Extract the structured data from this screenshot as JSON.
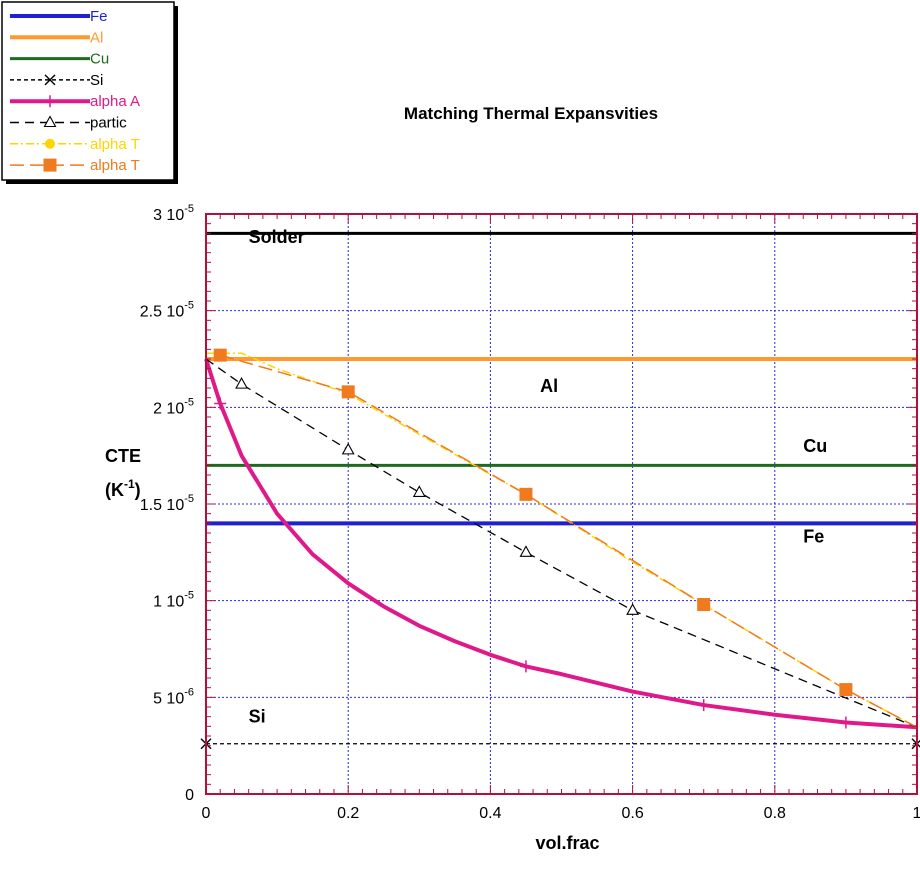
{
  "chart_data": {
    "type": "line",
    "title": "Matching Thermal Expansvities",
    "xlabel": "vol.frac",
    "ylabel_line1": "CTE",
    "ylabel_line2_base": "(K",
    "ylabel_line2_sup": "-1",
    "ylabel_line2_end": ")",
    "xlim": [
      0,
      1
    ],
    "ylim": [
      0,
      3e-05
    ],
    "x_ticks": [
      0,
      0.2,
      0.4,
      0.6,
      0.8,
      1
    ],
    "x_tick_labels": [
      "0",
      "0.2",
      "0.4",
      "0.6",
      "0.8",
      "1"
    ],
    "y_ticks": [
      0,
      5e-06,
      1e-05,
      1.5e-05,
      2e-05,
      2.5e-05,
      3e-05
    ],
    "y_tick_labels": [
      {
        "base": "0",
        "exp": ""
      },
      {
        "base": "5 10",
        "exp": "-6"
      },
      {
        "base": "1 10",
        "exp": "-5"
      },
      {
        "base": "1.5 10",
        "exp": "-5"
      },
      {
        "base": "2 10",
        "exp": "-5"
      },
      {
        "base": "2.5 10",
        "exp": "-5"
      },
      {
        "base": "3 10",
        "exp": "-5"
      }
    ],
    "grid": true,
    "legend_position": "top-left",
    "annotations": [
      {
        "text": "Solder",
        "x": 0.06,
        "y": 2.85e-05
      },
      {
        "text": "Al",
        "x": 0.47,
        "y": 2.08e-05
      },
      {
        "text": "Cu",
        "x": 0.84,
        "y": 1.77e-05
      },
      {
        "text": "Fe",
        "x": 0.84,
        "y": 1.3e-05
      },
      {
        "text": "Si",
        "x": 0.06,
        "y": 3.7e-06
      }
    ],
    "series": [
      {
        "name": "Fe",
        "color": "#1f1fd6",
        "style": "solid-thick",
        "marker": "none",
        "x": [
          0,
          1
        ],
        "y": [
          1.4e-05,
          1.4e-05
        ]
      },
      {
        "name": "Al",
        "color": "#ff9a2e",
        "style": "solid-thick",
        "marker": "none",
        "x": [
          0,
          1
        ],
        "y": [
          2.25e-05,
          2.25e-05
        ]
      },
      {
        "name": "Cu",
        "color": "#1e6b1e",
        "style": "solid-medium",
        "marker": "none",
        "x": [
          0,
          1
        ],
        "y": [
          1.7e-05,
          1.7e-05
        ]
      },
      {
        "name": "Si",
        "color": "#000000",
        "style": "dotted",
        "marker": "x",
        "x": [
          0,
          1
        ],
        "y": [
          2.6e-06,
          2.6e-06
        ],
        "marker_x": [
          0,
          1
        ]
      },
      {
        "name": "alpha A",
        "color": "#e0198a",
        "style": "solid-thick",
        "marker": "plus",
        "x": [
          0,
          0.02,
          0.05,
          0.1,
          0.15,
          0.2,
          0.25,
          0.3,
          0.35,
          0.4,
          0.45,
          0.5,
          0.6,
          0.7,
          0.8,
          0.9,
          1.0
        ],
        "y": [
          2.25e-05,
          2.02e-05,
          1.75e-05,
          1.45e-05,
          1.24e-05,
          1.09e-05,
          9.7e-06,
          8.7e-06,
          7.9e-06,
          7.2e-06,
          6.6e-06,
          6.2e-06,
          5.3e-06,
          4.6e-06,
          4.1e-06,
          3.7e-06,
          3.45e-06
        ],
        "marker_x": [
          0.02,
          0.45,
          0.7,
          0.9
        ]
      },
      {
        "name": "partic",
        "color": "#000000",
        "style": "dashed",
        "marker": "triangle",
        "x": [
          0,
          0.05,
          0.2,
          0.3,
          0.45,
          0.6,
          1.0
        ],
        "y": [
          2.25e-05,
          2.12e-05,
          1.78e-05,
          1.56e-05,
          1.25e-05,
          9.5e-06,
          3.45e-06
        ],
        "marker_x": [
          0.05,
          0.2,
          0.3,
          0.45,
          0.6
        ]
      },
      {
        "name": "alpha  T",
        "color": "#ffd500",
        "style": "dashdot",
        "marker": "none",
        "x": [
          0,
          0.05,
          0.1,
          0.2,
          0.3,
          0.45,
          0.6,
          0.7,
          0.9,
          1.0
        ],
        "y": [
          2.28e-05,
          2.28e-05,
          2.2e-05,
          2.07e-05,
          1.86e-05,
          1.55e-05,
          1.2e-05,
          9.8e-06,
          5.4e-06,
          3.45e-06
        ]
      },
      {
        "name": "alpha T",
        "color": "#f07a1e",
        "style": "dash-long",
        "marker": "square",
        "x": [
          0.02,
          0.2,
          0.45,
          0.7,
          0.9,
          1.0
        ],
        "y": [
          2.27e-05,
          2.08e-05,
          1.55e-05,
          9.8e-06,
          5.4e-06,
          3.45e-06
        ],
        "marker_x": [
          0.02,
          0.2,
          0.45,
          0.7,
          0.9
        ]
      },
      {
        "name": "Solder",
        "legend": false,
        "color": "#000000",
        "style": "solid-medium",
        "marker": "none",
        "x": [
          0,
          1
        ],
        "y": [
          2.9e-05,
          2.9e-05
        ]
      }
    ]
  }
}
